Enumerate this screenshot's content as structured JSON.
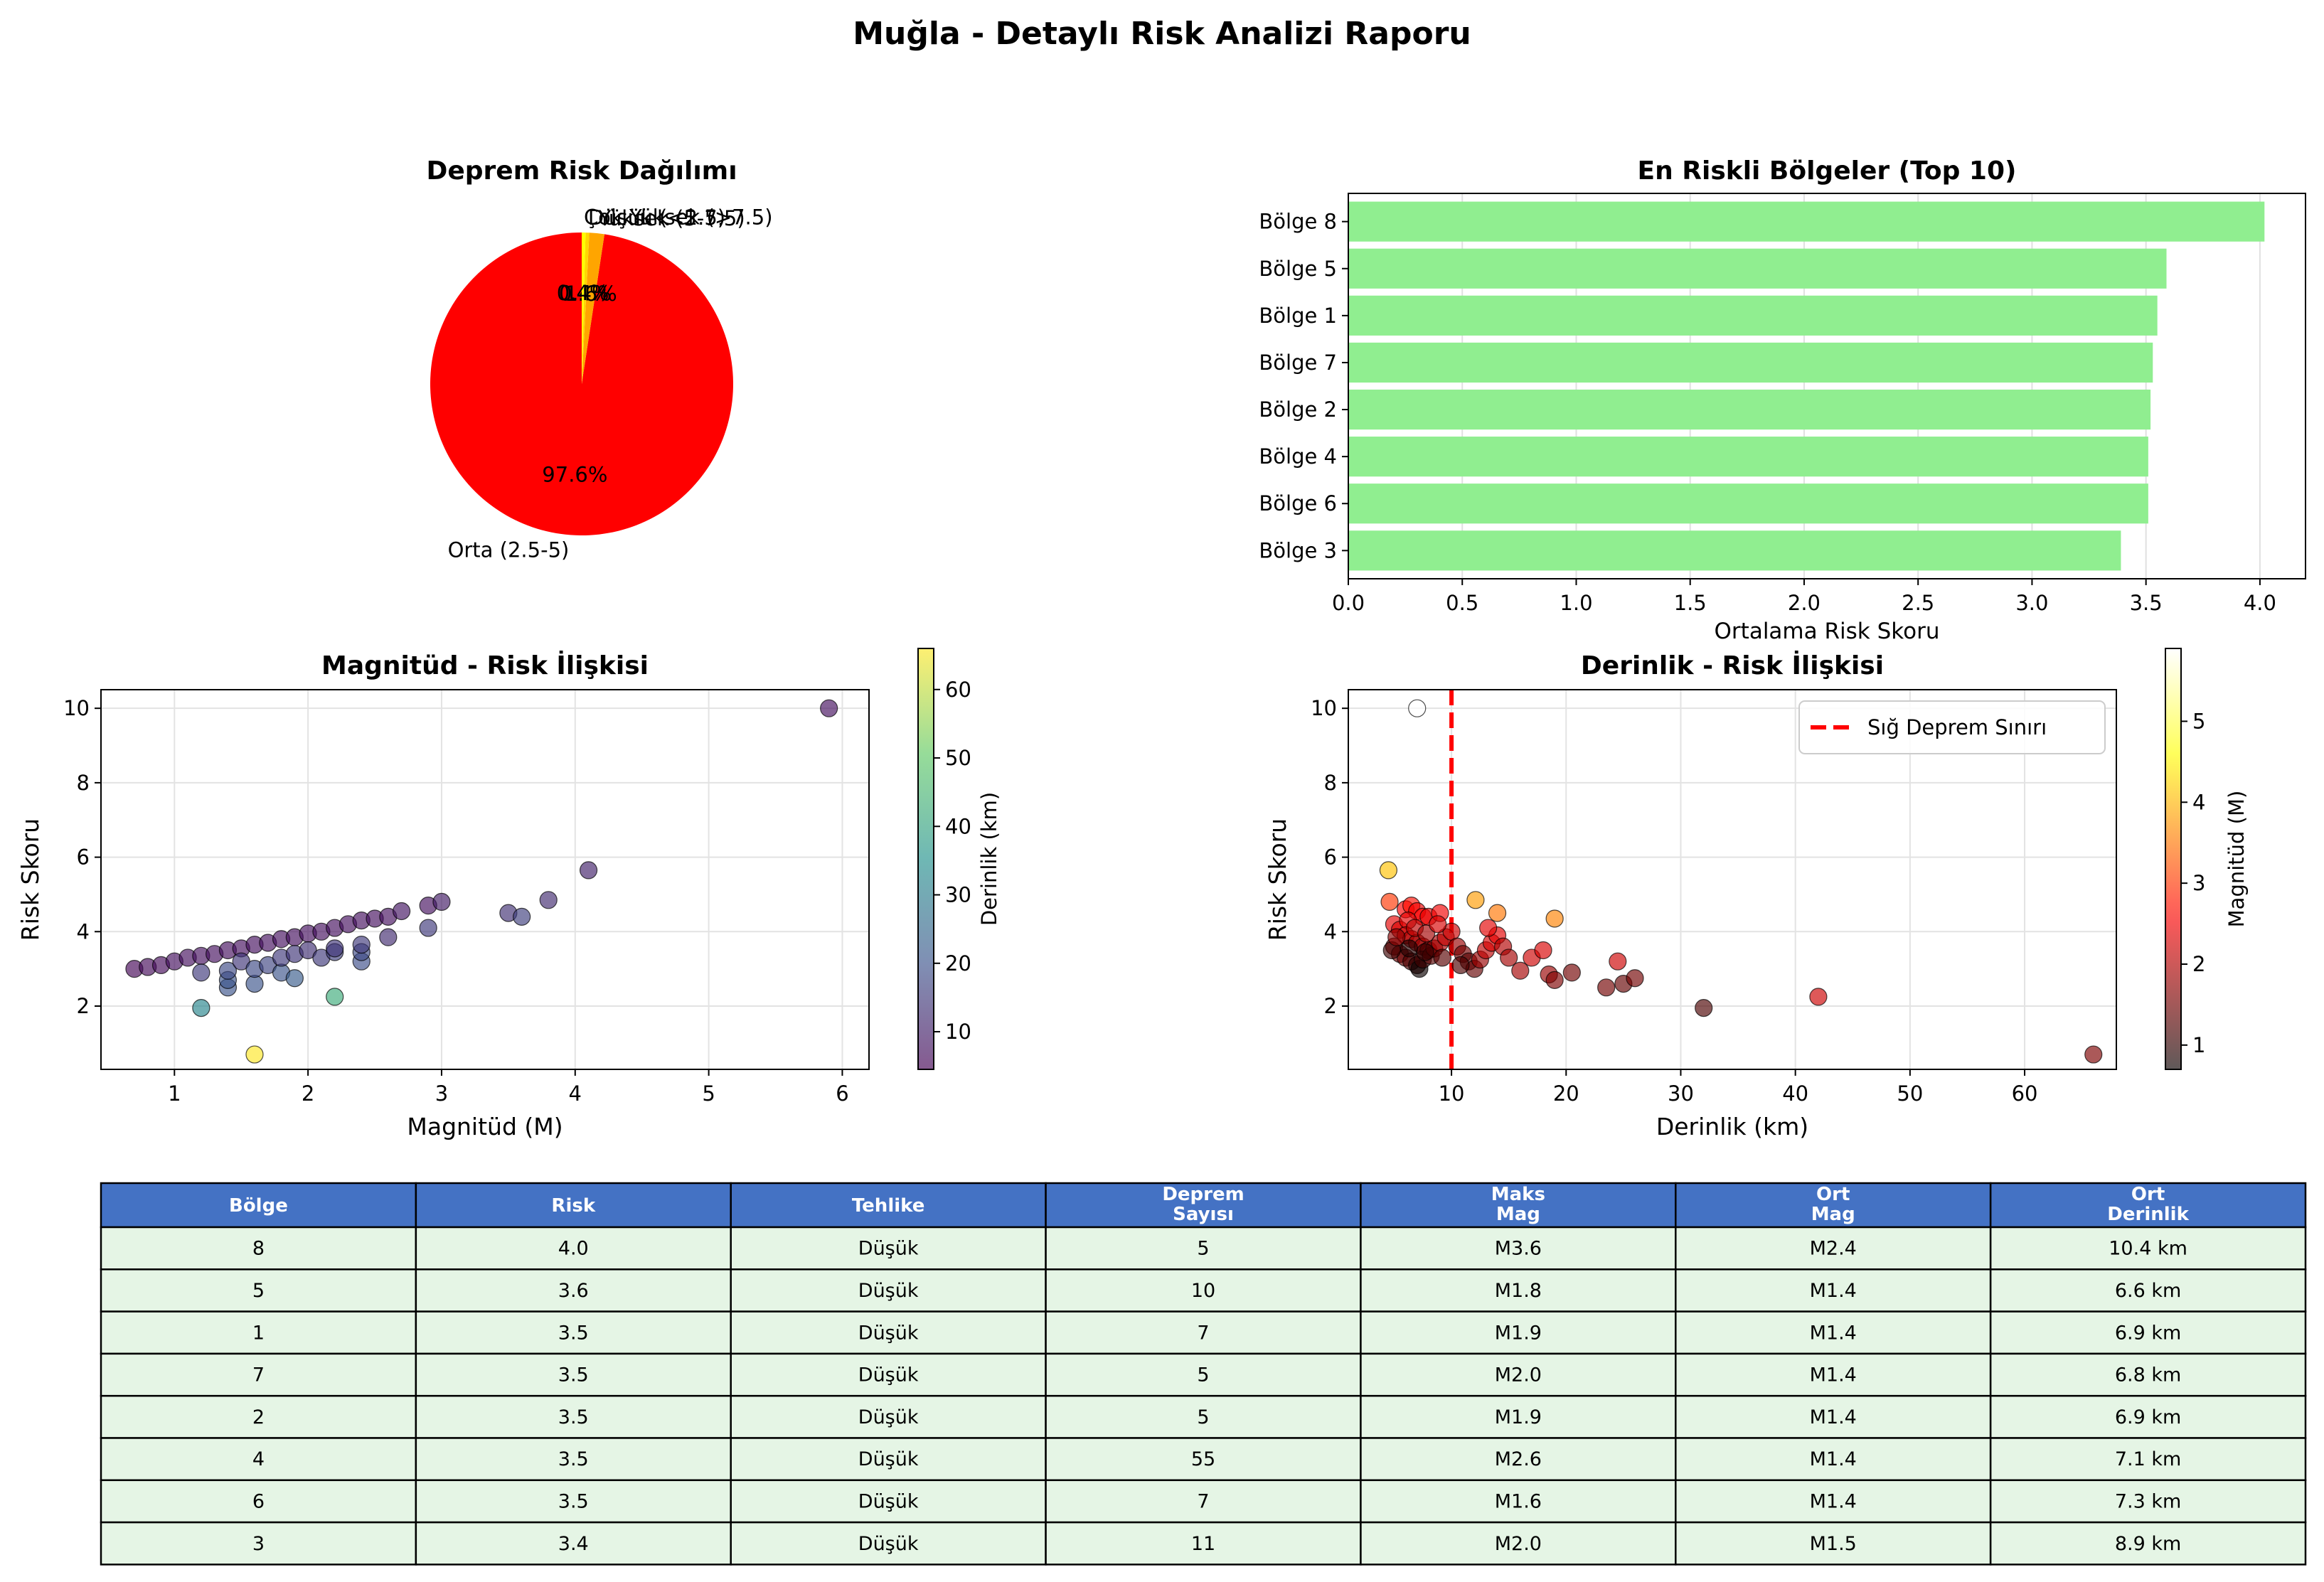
{
  "title": "Muğla - Detaylı Risk Analizi Raporu",
  "chart_data": [
    {
      "type": "pie",
      "title": "Deprem Risk Dağılımı",
      "slices": [
        {
          "label": "Orta (2.5-5)",
          "pct_label": "97.6%",
          "value": 97.6,
          "color": "#ff0000"
        },
        {
          "label": "Yüksek (5-7.5)",
          "pct_label": "1.6%",
          "value": 1.6,
          "color": "#ffa500"
        },
        {
          "label": "Düşük (<2.5)",
          "pct_label": "0.4%",
          "value": 0.4,
          "color": "#ffd700"
        },
        {
          "label": "Çok Yüksek (>7.5)",
          "pct_label": "0.4%",
          "value": 0.4,
          "color": "#ffff00"
        }
      ]
    },
    {
      "type": "bar",
      "orientation": "horizontal",
      "title": "En Riskli Bölgeler (Top 10)",
      "xlabel": "Ortalama Risk Skoru",
      "ylabel": "",
      "xlim": [
        0,
        4.2
      ],
      "xticks": [
        "0.0",
        "0.5",
        "1.0",
        "1.5",
        "2.0",
        "2.5",
        "3.0",
        "3.5",
        "4.0"
      ],
      "color": "#90ee90",
      "categories": [
        "Bölge 8",
        "Bölge 5",
        "Bölge 1",
        "Bölge 7",
        "Bölge 2",
        "Bölge 4",
        "Bölge 6",
        "Bölge 3"
      ],
      "values": [
        4.02,
        3.59,
        3.55,
        3.53,
        3.52,
        3.51,
        3.51,
        3.39
      ],
      "grid": true
    },
    {
      "type": "scatter",
      "title": "Magnitüd - Risk İlişkisi",
      "xlabel": "Magnitüd (M)",
      "ylabel": "Risk Skoru",
      "xlim": [
        0.45,
        6.2
      ],
      "ylim": [
        0.3,
        10.5
      ],
      "xticks": [
        "1",
        "2",
        "3",
        "4",
        "5",
        "6"
      ],
      "yticks": [
        "2",
        "4",
        "6",
        "8",
        "10"
      ],
      "colorbar_label": "Derinlik (km)",
      "colorbar_ticks": [
        "10",
        "20",
        "30",
        "40",
        "50",
        "60"
      ],
      "colormap": "viridis",
      "color_range": [
        4.5,
        66
      ],
      "grid": true,
      "points": [
        [
          0.7,
          3.0,
          5
        ],
        [
          0.8,
          3.05,
          6
        ],
        [
          0.9,
          3.1,
          6
        ],
        [
          1.0,
          3.2,
          7
        ],
        [
          1.1,
          3.3,
          7
        ],
        [
          1.2,
          3.35,
          7
        ],
        [
          1.3,
          3.4,
          7
        ],
        [
          1.4,
          3.5,
          7
        ],
        [
          1.5,
          3.55,
          7
        ],
        [
          1.6,
          3.65,
          7
        ],
        [
          1.7,
          3.7,
          7
        ],
        [
          1.8,
          3.8,
          7
        ],
        [
          1.9,
          3.85,
          7
        ],
        [
          2.0,
          3.95,
          7
        ],
        [
          2.1,
          4.0,
          7
        ],
        [
          2.2,
          4.1,
          7
        ],
        [
          2.3,
          4.2,
          7
        ],
        [
          2.4,
          4.3,
          7
        ],
        [
          2.5,
          4.35,
          7
        ],
        [
          2.6,
          4.4,
          7
        ],
        [
          2.7,
          4.55,
          8
        ],
        [
          2.9,
          4.7,
          7
        ],
        [
          3.0,
          4.8,
          9
        ],
        [
          1.2,
          2.9,
          15
        ],
        [
          1.4,
          2.5,
          20
        ],
        [
          1.4,
          2.7,
          20
        ],
        [
          1.4,
          2.95,
          18
        ],
        [
          1.5,
          3.2,
          14
        ],
        [
          1.6,
          2.6,
          20
        ],
        [
          1.6,
          3.0,
          18
        ],
        [
          1.7,
          3.1,
          17
        ],
        [
          1.8,
          2.9,
          20
        ],
        [
          1.8,
          3.3,
          15
        ],
        [
          1.9,
          2.75,
          22
        ],
        [
          1.9,
          3.4,
          14
        ],
        [
          2.0,
          3.5,
          13
        ],
        [
          2.1,
          3.3,
          15
        ],
        [
          2.2,
          3.45,
          16
        ],
        [
          2.2,
          3.55,
          14
        ],
        [
          2.4,
          3.2,
          19
        ],
        [
          2.4,
          3.45,
          18
        ],
        [
          2.4,
          3.65,
          15
        ],
        [
          2.6,
          3.85,
          12
        ],
        [
          2.9,
          4.1,
          15
        ],
        [
          3.5,
          4.5,
          13
        ],
        [
          3.6,
          4.4,
          16
        ],
        [
          3.8,
          4.85,
          12
        ],
        [
          4.1,
          5.65,
          10
        ],
        [
          5.9,
          10.0,
          7
        ],
        [
          1.2,
          1.95,
          32
        ],
        [
          2.2,
          2.25,
          42
        ],
        [
          1.6,
          0.7,
          66
        ]
      ]
    },
    {
      "type": "scatter",
      "title": "Derinlik - Risk İlişkisi",
      "xlabel": "Derinlik (km)",
      "ylabel": "Risk Skoru",
      "xlim": [
        1,
        68
      ],
      "ylim": [
        0.3,
        10.5
      ],
      "xticks": [
        "10",
        "20",
        "30",
        "40",
        "50",
        "60"
      ],
      "yticks": [
        "2",
        "4",
        "6",
        "8",
        "10"
      ],
      "colorbar_label": "Magnitüd (M)",
      "colorbar_ticks": [
        "1",
        "2",
        "3",
        "4",
        "5"
      ],
      "colormap": "hot",
      "color_range": [
        0.7,
        5.9
      ],
      "legend": {
        "label": "Sığ Deprem Sınırı",
        "color": "#ff0000",
        "x": 10,
        "placement": "upper-right"
      },
      "grid": true,
      "points": [
        [
          7,
          10.0,
          5.9
        ],
        [
          4.5,
          5.65,
          4.1
        ],
        [
          4.6,
          4.8,
          3.0
        ],
        [
          12.1,
          4.85,
          3.8
        ],
        [
          14.0,
          4.5,
          3.5
        ],
        [
          19.0,
          4.35,
          3.6
        ],
        [
          6.0,
          4.6,
          2.6
        ],
        [
          6.5,
          4.7,
          2.7
        ],
        [
          7.0,
          4.55,
          2.5
        ],
        [
          7.5,
          4.4,
          2.6
        ],
        [
          5.0,
          4.2,
          2.4
        ],
        [
          5.5,
          4.05,
          2.3
        ],
        [
          6.2,
          4.3,
          2.4
        ],
        [
          8.0,
          4.4,
          2.4
        ],
        [
          9.0,
          4.5,
          2.5
        ],
        [
          6.0,
          3.9,
          2.2
        ],
        [
          6.5,
          3.8,
          2.0
        ],
        [
          7.0,
          3.7,
          1.9
        ],
        [
          7.5,
          3.6,
          1.8
        ],
        [
          8.0,
          3.5,
          1.7
        ],
        [
          5.0,
          3.6,
          1.6
        ],
        [
          5.5,
          3.4,
          1.5
        ],
        [
          6.0,
          3.3,
          1.4
        ],
        [
          6.5,
          3.2,
          1.2
        ],
        [
          7.0,
          3.1,
          1.0
        ],
        [
          7.2,
          3.0,
          0.7
        ],
        [
          7.5,
          3.25,
          1.1
        ],
        [
          8.2,
          3.35,
          1.3
        ],
        [
          8.5,
          3.55,
          1.6
        ],
        [
          9.0,
          3.7,
          2.0
        ],
        [
          9.5,
          3.85,
          2.1
        ],
        [
          10.0,
          4.0,
          2.2
        ],
        [
          10.5,
          3.6,
          1.8
        ],
        [
          11.0,
          3.4,
          1.5
        ],
        [
          11.5,
          3.2,
          1.3
        ],
        [
          12.0,
          3.0,
          1.4
        ],
        [
          12.5,
          3.25,
          1.8
        ],
        [
          13.0,
          3.5,
          2.1
        ],
        [
          13.5,
          3.7,
          2.3
        ],
        [
          14.0,
          3.9,
          2.4
        ],
        [
          14.5,
          3.6,
          2.0
        ],
        [
          15.0,
          3.3,
          1.9
        ],
        [
          16.0,
          2.95,
          1.9
        ],
        [
          17.0,
          3.3,
          2.2
        ],
        [
          18.0,
          3.5,
          2.3
        ],
        [
          18.5,
          2.85,
          1.8
        ],
        [
          19.0,
          2.7,
          1.6
        ],
        [
          20.5,
          2.9,
          1.5
        ],
        [
          23.5,
          2.5,
          1.5
        ],
        [
          24.5,
          3.2,
          2.2
        ],
        [
          25.0,
          2.6,
          1.4
        ],
        [
          26.0,
          2.75,
          1.5
        ],
        [
          32.0,
          1.95,
          1.2
        ],
        [
          42.0,
          2.25,
          2.2
        ],
        [
          66.0,
          0.7,
          1.6
        ],
        [
          4.8,
          3.5,
          1.1
        ],
        [
          5.2,
          3.85,
          1.7
        ],
        [
          6.8,
          4.1,
          2.1
        ],
        [
          7.8,
          3.95,
          1.9
        ],
        [
          8.8,
          4.2,
          2.3
        ],
        [
          9.2,
          3.3,
          1.3
        ],
        [
          6.3,
          3.55,
          0.9
        ],
        [
          7.7,
          3.45,
          1.0
        ],
        [
          10.8,
          3.1,
          1.2
        ],
        [
          13.2,
          4.1,
          2.4
        ]
      ]
    },
    {
      "type": "table",
      "columns": [
        [
          "Bölge"
        ],
        [
          "Risk"
        ],
        [
          "Tehlike"
        ],
        [
          "Deprem",
          "Sayısı"
        ],
        [
          "Maks",
          "Mag"
        ],
        [
          "Ort",
          "Mag"
        ],
        [
          "Ort",
          "Derinlik"
        ]
      ],
      "header_color": "#4472c4",
      "row_color": "#e5f5e5",
      "rows": [
        [
          "8",
          "4.0",
          "Düşük",
          "5",
          "M3.6",
          "M2.4",
          "10.4 km"
        ],
        [
          "5",
          "3.6",
          "Düşük",
          "10",
          "M1.8",
          "M1.4",
          "6.6 km"
        ],
        [
          "1",
          "3.5",
          "Düşük",
          "7",
          "M1.9",
          "M1.4",
          "6.9 km"
        ],
        [
          "7",
          "3.5",
          "Düşük",
          "5",
          "M2.0",
          "M1.4",
          "6.8 km"
        ],
        [
          "2",
          "3.5",
          "Düşük",
          "5",
          "M1.9",
          "M1.4",
          "6.9 km"
        ],
        [
          "4",
          "3.5",
          "Düşük",
          "55",
          "M2.6",
          "M1.4",
          "7.1 km"
        ],
        [
          "6",
          "3.5",
          "Düşük",
          "7",
          "M1.6",
          "M1.4",
          "7.3 km"
        ],
        [
          "3",
          "3.4",
          "Düşük",
          "11",
          "M2.0",
          "M1.5",
          "8.9 km"
        ]
      ]
    }
  ]
}
